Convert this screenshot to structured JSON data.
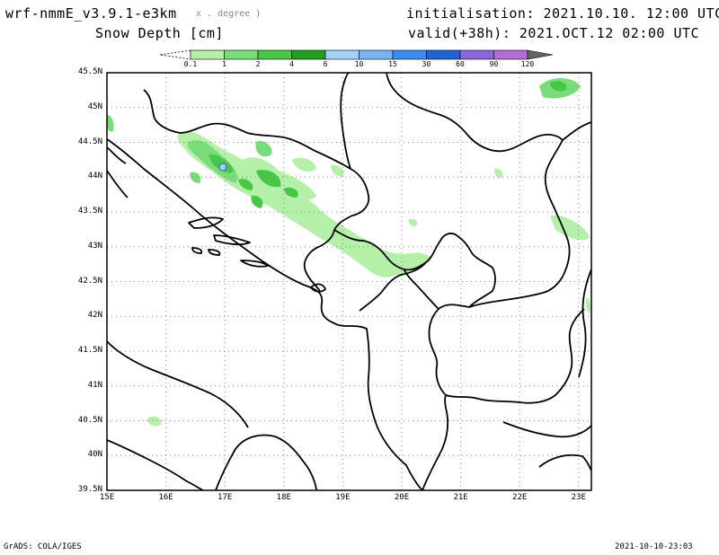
{
  "header": {
    "model": "wrf-nmmE_v3.9.1-e3km",
    "model_sub": "x . degree )",
    "variable": "Snow Depth [cm]",
    "init": "initialisation: 2021.10.10.  12:00 UTC",
    "valid": "valid(+38h): 2021.OCT.12 02:00 UTC"
  },
  "colorbar": {
    "levels": [
      "0.1",
      "1",
      "2",
      "4",
      "6",
      "10",
      "15",
      "30",
      "60",
      "90",
      "120"
    ],
    "colors": [
      "#b4f0a8",
      "#78dc78",
      "#46c846",
      "#1ea01e",
      "#a0d2fa",
      "#78b4f0",
      "#3c8cf0",
      "#1e64d2",
      "#8c64dc",
      "#b46ed2",
      "#646464"
    ]
  },
  "axes": {
    "lat_labels": [
      "45.5N",
      "45N",
      "44.5N",
      "44N",
      "43.5N",
      "43N",
      "42.5N",
      "42N",
      "41.5N",
      "41N",
      "40.5N",
      "40N",
      "39.5N"
    ],
    "lon_labels": [
      "15E",
      "16E",
      "17E",
      "18E",
      "19E",
      "20E",
      "21E",
      "22E",
      "23E"
    ]
  },
  "footer": {
    "left": "GrADS: COLA/IGES",
    "right": "2021-10-10-23:03"
  }
}
